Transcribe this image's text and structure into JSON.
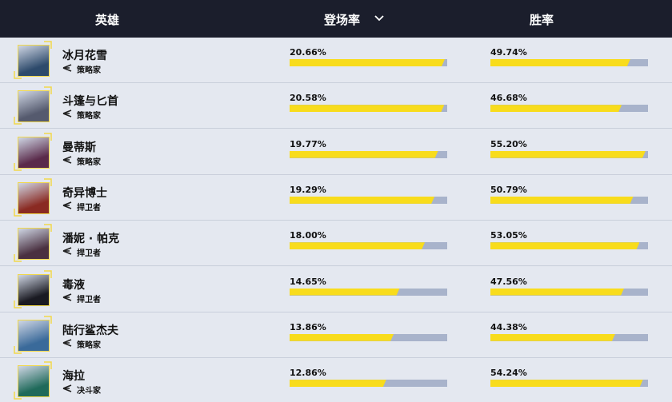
{
  "table": {
    "headers": [
      "英雄",
      "登场率",
      "胜率"
    ],
    "rows": [
      {
        "hero": "冰月花雪",
        "role": "策略家",
        "pick_rate": {
          "value": 20.66,
          "label": "20.66%"
        },
        "win_rate": {
          "value": 49.74,
          "label": "49.74%"
        }
      },
      {
        "hero": "斗篷与匕首",
        "role": "策略家",
        "pick_rate": {
          "value": 20.58,
          "label": "20.58%"
        },
        "win_rate": {
          "value": 46.68,
          "label": "46.68%"
        }
      },
      {
        "hero": "曼蒂斯",
        "role": "策略家",
        "pick_rate": {
          "value": 19.77,
          "label": "19.77%"
        },
        "win_rate": {
          "value": 55.2,
          "label": "55.20%"
        }
      },
      {
        "hero": "奇异博士",
        "role": "捍卫者",
        "pick_rate": {
          "value": 19.29,
          "label": "19.29%"
        },
        "win_rate": {
          "value": 50.79,
          "label": "50.79%"
        }
      },
      {
        "hero": "潘妮 · 帕克",
        "role": "捍卫者",
        "pick_rate": {
          "value": 18.0,
          "label": "18.00%"
        },
        "win_rate": {
          "value": 53.05,
          "label": "53.05%"
        }
      },
      {
        "hero": "毒液",
        "role": "捍卫者",
        "pick_rate": {
          "value": 14.65,
          "label": "14.65%"
        },
        "win_rate": {
          "value": 47.56,
          "label": "47.56%"
        }
      },
      {
        "hero": "陆行鲨杰夫",
        "role": "策略家",
        "pick_rate": {
          "value": 13.86,
          "label": "13.86%"
        },
        "win_rate": {
          "value": 44.38,
          "label": "44.38%"
        }
      },
      {
        "hero": "海拉",
        "role": "决斗家",
        "pick_rate": {
          "value": 12.86,
          "label": "12.86%"
        },
        "win_rate": {
          "value": 54.24,
          "label": "54.24%"
        }
      }
    ]
  }
}
